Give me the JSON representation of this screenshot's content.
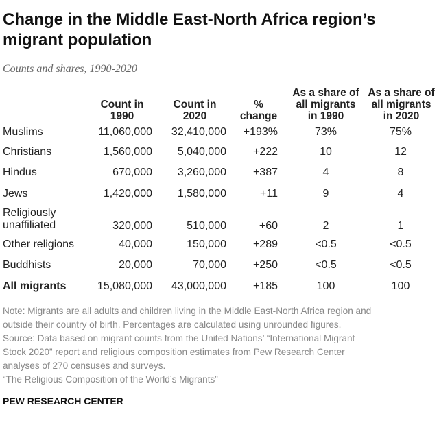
{
  "title_line1": "Change in the Middle East-North Africa region’s",
  "title_line2": "migrant population",
  "subtitle": "Counts and shares, 1990-2020",
  "chart_data": {
    "type": "table",
    "columns": [
      {
        "key": "count_1990",
        "label": "Count in\n1990"
      },
      {
        "key": "count_2020",
        "label": "Count in\n2020"
      },
      {
        "key": "pct_change",
        "label": "%\nchange"
      },
      {
        "key": "share_1990",
        "label": "As a share of\nall migrants\nin 1990"
      },
      {
        "key": "share_2020",
        "label": "As a share of\nall migrants\nin 2020"
      }
    ],
    "rows": [
      {
        "label": "Muslims",
        "count_1990": "11,060,000",
        "count_2020": "32,410,000",
        "pct_change": "+193%",
        "share_1990": "73%",
        "share_2020": "75%"
      },
      {
        "label": "Christians",
        "count_1990": "1,560,000",
        "count_2020": "5,040,000",
        "pct_change": "+222",
        "share_1990": "10",
        "share_2020": "12"
      },
      {
        "label": "Hindus",
        "count_1990": "670,000",
        "count_2020": "3,260,000",
        "pct_change": "+387",
        "share_1990": "4",
        "share_2020": "8"
      },
      {
        "label": "Jews",
        "count_1990": "1,420,000",
        "count_2020": "1,580,000",
        "pct_change": "+11",
        "share_1990": "9",
        "share_2020": "4"
      },
      {
        "label": "Religiously\nunaffiliated",
        "count_1990": "320,000",
        "count_2020": "510,000",
        "pct_change": "+60",
        "share_1990": "2",
        "share_2020": "1"
      },
      {
        "label": "Other religions",
        "count_1990": "40,000",
        "count_2020": "150,000",
        "pct_change": "+289",
        "share_1990": "<0.5",
        "share_2020": "<0.5"
      },
      {
        "label": "Buddhists",
        "count_1990": "20,000",
        "count_2020": "70,000",
        "pct_change": "+250",
        "share_1990": "<0.5",
        "share_2020": "<0.5"
      },
      {
        "label": "All migrants",
        "count_1990": "15,080,000",
        "count_2020": "43,000,000",
        "pct_change": "+185",
        "share_1990": "100",
        "share_2020": "100"
      }
    ]
  },
  "notes": {
    "line1": "Note: Migrants are all adults and children living in the Middle East-North Africa region and",
    "line2": "outside their country of birth. Percentages are calculated using unrounded figures.",
    "line3": "Source: Data based on migrant counts from the United Nations’ “International Migrant",
    "line4": "Stock 2020” report and religious composition estimates from Pew Research Center",
    "line5": "analyses of 270 censuses and surveys.",
    "line6": "“The Religious Composition of the World’s Migrants”"
  },
  "footer": "PEW RESEARCH CENTER"
}
